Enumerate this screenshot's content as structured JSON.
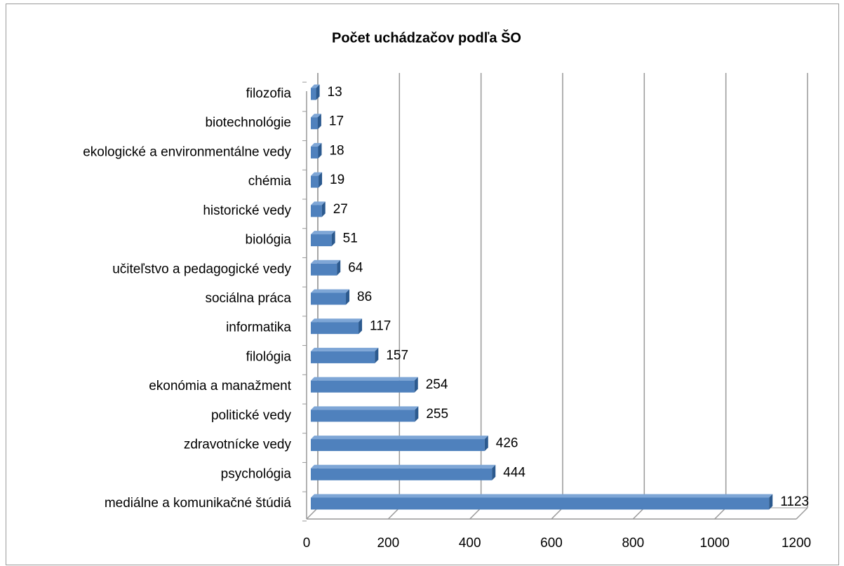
{
  "chart_data": {
    "type": "bar",
    "orientation": "horizontal",
    "title": "Počet uchádzačov podľa ŠO",
    "categories": [
      "filozofia",
      "biotechnológie",
      "ekologické a environmentálne vedy",
      "chémia",
      "historické vedy",
      "biológia",
      "učiteľstvo a pedagogické vedy",
      "sociálna práca",
      "informatika",
      "filológia",
      "ekonómia a manažment",
      "politické vedy",
      "zdravotnícke vedy",
      "psychológia",
      "mediálne a komunikačné štúdiá"
    ],
    "values": [
      13,
      17,
      18,
      19,
      27,
      51,
      64,
      86,
      117,
      157,
      254,
      255,
      426,
      444,
      1123
    ],
    "color": "#4f81bd",
    "xlim": [
      0,
      1200
    ],
    "xticks": [
      0,
      200,
      400,
      600,
      800,
      1000,
      1200
    ],
    "grid": true
  }
}
